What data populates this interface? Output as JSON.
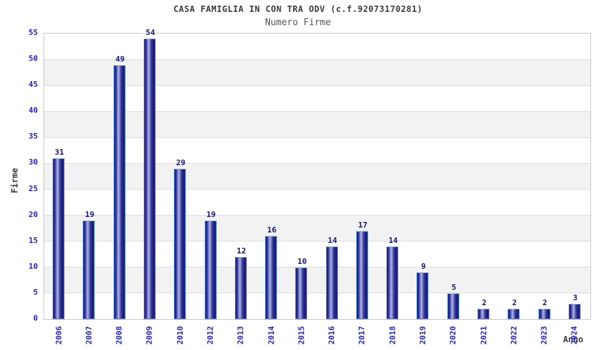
{
  "chart_data": {
    "type": "bar",
    "title": "CASA FAMIGLIA IN CON TRA ODV (c.f.92073170281)",
    "subtitle": "Numero Firme",
    "xlabel": "Anno",
    "ylabel": "Firme",
    "categories": [
      "2006",
      "2007",
      "2008",
      "2009",
      "2010",
      "2012",
      "2013",
      "2014",
      "2015",
      "2016",
      "2017",
      "2018",
      "2019",
      "2020",
      "2021",
      "2022",
      "2023",
      "2024"
    ],
    "values": [
      31,
      19,
      49,
      54,
      29,
      19,
      12,
      16,
      10,
      14,
      17,
      14,
      9,
      5,
      2,
      2,
      2,
      3
    ],
    "ylim": [
      0,
      55
    ],
    "y_ticks": [
      0,
      5,
      10,
      15,
      20,
      25,
      30,
      35,
      40,
      45,
      50,
      55
    ],
    "grid": true,
    "legend": "none",
    "colors": {
      "title_color": "#3c3c3c",
      "subtitle_color": "#555555",
      "tick_color": "#2222cc",
      "value_color": "#14147a",
      "band_color": "#f2f2f2",
      "grid_color": "#dcdcdc",
      "border_color": "#c8c8c8",
      "bar_dark": "#1b1b74",
      "bar_light": "#aab2e2",
      "bar_border": "#4f87d2",
      "bar_border_top": "#8ab6e4"
    }
  }
}
